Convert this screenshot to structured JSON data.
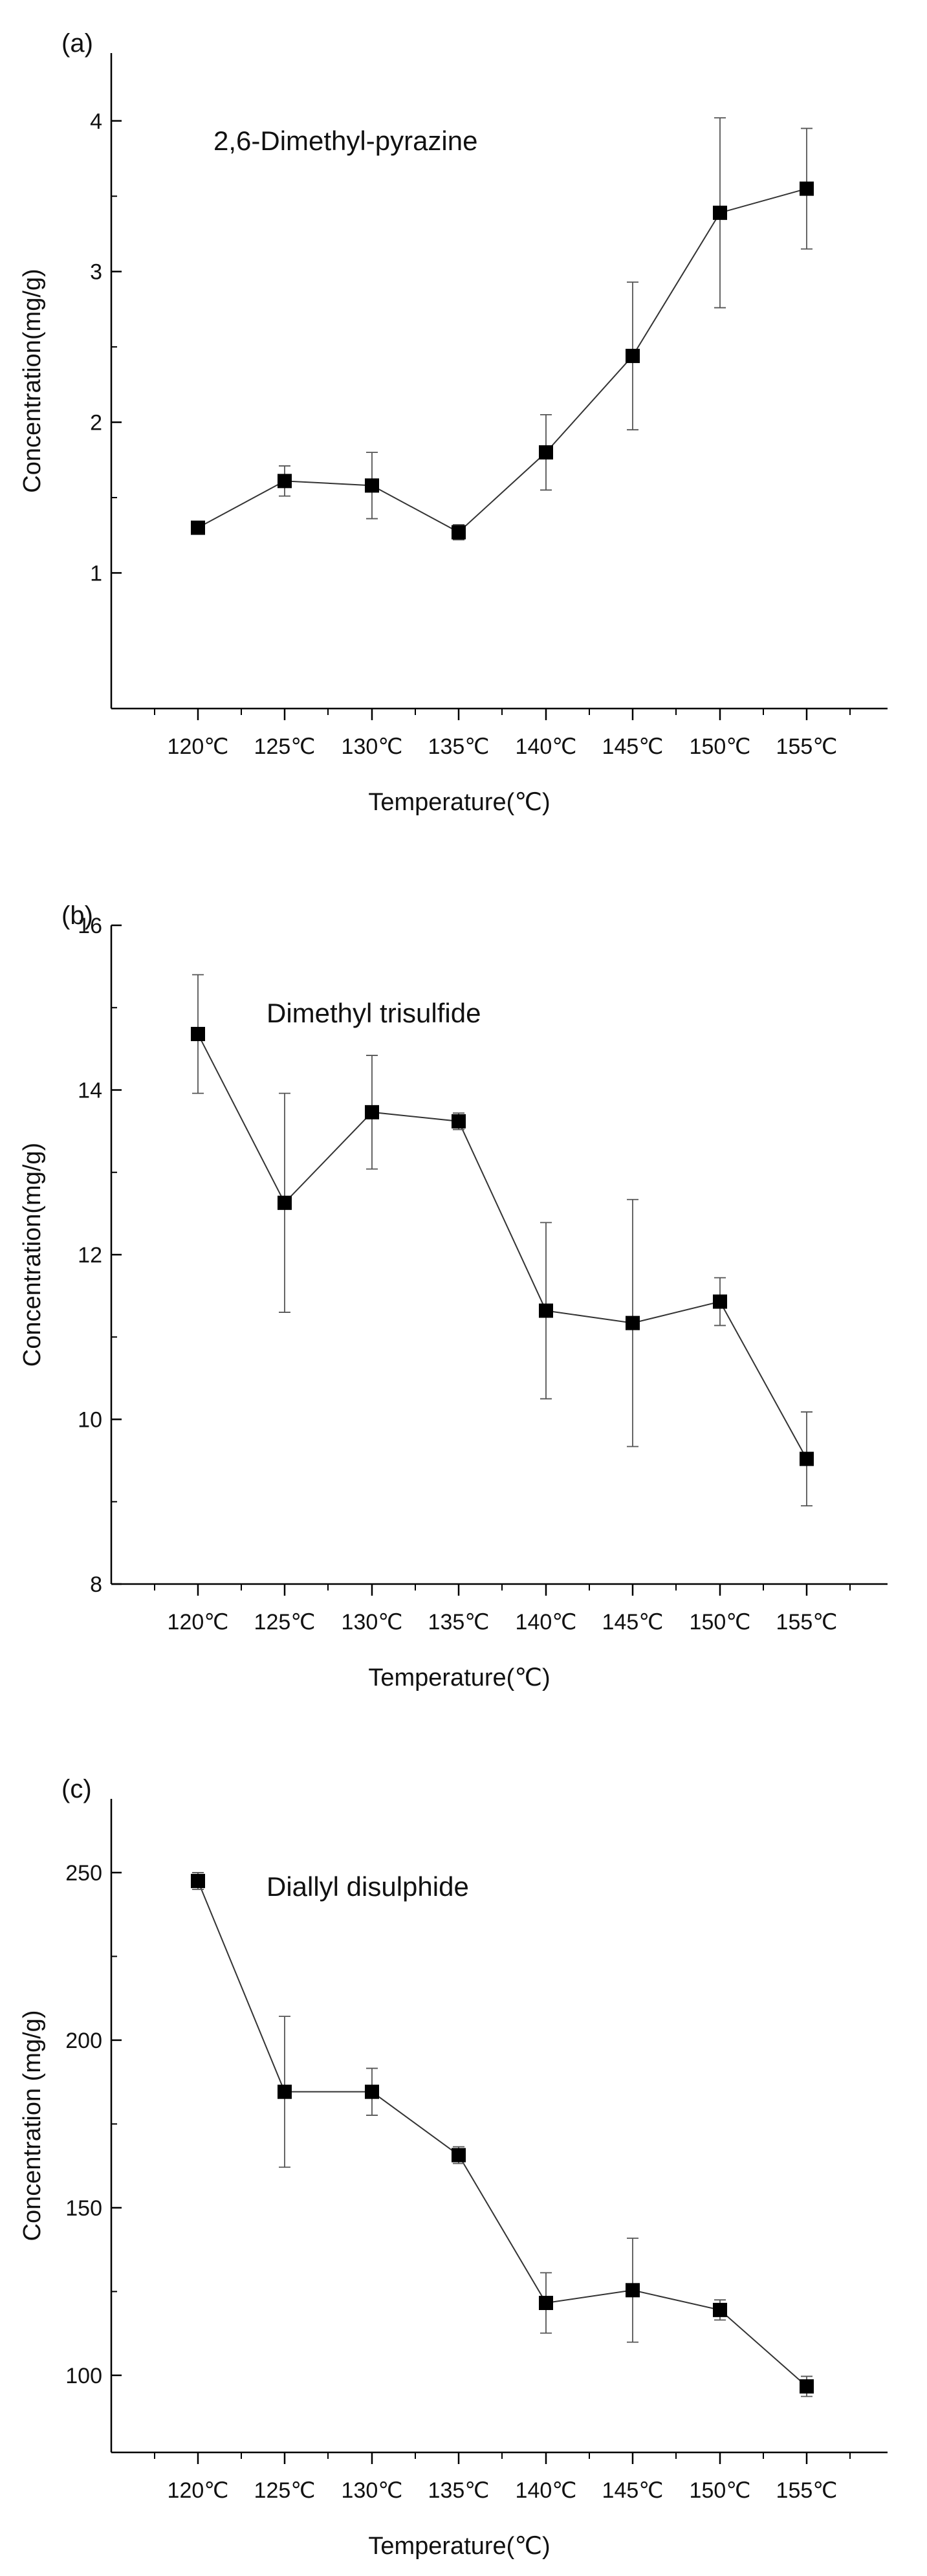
{
  "chart_data": [
    {
      "type": "line",
      "panel_label": "(a)",
      "title": "2,6-Dimethyl-pyrazine",
      "xlabel": "Temperature(℃)",
      "ylabel": "Concentration(mg/g)",
      "categories": [
        "120℃",
        "125℃",
        "130℃",
        "135℃",
        "140℃",
        "145℃",
        "150℃",
        "155℃"
      ],
      "values": [
        1.3,
        1.61,
        1.58,
        1.27,
        1.8,
        2.44,
        3.39,
        3.55
      ],
      "errors": [
        0.03,
        0.1,
        0.22,
        0.05,
        0.25,
        0.49,
        0.63,
        0.4
      ],
      "ylim": [
        0.1,
        4.45
      ],
      "yticks": [
        1,
        2,
        3,
        4
      ],
      "ytick_labels": [
        "1",
        "2",
        "3",
        "4"
      ],
      "grid": false,
      "marker": "square",
      "color": "#000000"
    },
    {
      "type": "line",
      "panel_label": "(b)",
      "title": "Dimethyl trisulfide",
      "xlabel": "Temperature(℃)",
      "ylabel": "Concentration(mg/g)",
      "categories": [
        "120℃",
        "125℃",
        "130℃",
        "135℃",
        "140℃",
        "145℃",
        "150℃",
        "155℃"
      ],
      "values": [
        14.68,
        12.63,
        13.73,
        13.62,
        11.32,
        11.17,
        11.43,
        9.52
      ],
      "errors": [
        0.72,
        1.33,
        0.69,
        0.1,
        1.07,
        1.5,
        0.29,
        0.57
      ],
      "ylim": [
        8,
        16
      ],
      "yticks": [
        8,
        10,
        12,
        14,
        16
      ],
      "ytick_labels": [
        "8",
        "10",
        "12",
        "14",
        "16"
      ],
      "grid": false,
      "marker": "square",
      "color": "#000000"
    },
    {
      "type": "line",
      "panel_label": "(c)",
      "title": "Diallyl disulphide",
      "xlabel": "Temperature(℃)",
      "ylabel": "Concentration (mg/g)",
      "categories": [
        "120℃",
        "125℃",
        "130℃",
        "135℃",
        "140℃",
        "145℃",
        "150℃",
        "155℃"
      ],
      "values": [
        247.5,
        184.6,
        184.6,
        165.7,
        121.6,
        125.4,
        119.5,
        96.7
      ],
      "errors": [
        2.5,
        22.5,
        7.0,
        2.5,
        9.0,
        15.5,
        3.0,
        3.0
      ],
      "ylim": [
        77,
        272
      ],
      "yticks": [
        100,
        150,
        200,
        250
      ],
      "ytick_labels": [
        "100",
        "150",
        "200",
        "250"
      ],
      "grid": false,
      "marker": "square",
      "color": "#000000"
    }
  ]
}
